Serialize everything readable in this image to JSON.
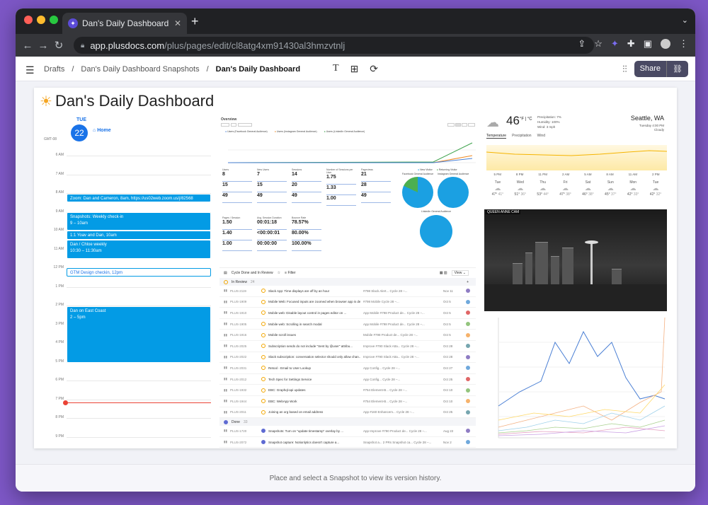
{
  "browser": {
    "tab_title": "Dan's Daily Dashboard | Plus",
    "url_domain": "app.plusdocs.com",
    "url_path": "/plus/pages/edit/cl8atg4xm91430al3hmzvtnlj"
  },
  "header": {
    "breadcrumbs": [
      "Drafts",
      "Dan's Daily Dashboard Snapshots",
      "Dan's Daily Dashboard"
    ],
    "share_label": "Share"
  },
  "page": {
    "title": "Dan's Daily Dashboard"
  },
  "calendar": {
    "day_name": "TUE",
    "day_num": "22",
    "home_label": "Home",
    "tz": "GMT-08",
    "hours": [
      "6 AM",
      "7 AM",
      "8 AM",
      "9 AM",
      "10 AM",
      "11 AM",
      "12 PM",
      "1 PM",
      "2 PM",
      "3 PM",
      "4 PM",
      "5 PM",
      "6 PM",
      "7 PM",
      "8 PM",
      "9 PM"
    ],
    "events": [
      {
        "title": "Zoom: Dan and Cameron, 8am, https://us02web.zoom.us/j/82568",
        "time": ""
      },
      {
        "title": "Snapshots: Weekly check-in",
        "time": "9 – 10am"
      },
      {
        "title": "1:1 Yoav and Dan, 10am",
        "time": ""
      },
      {
        "title": "Dan / Chloe weekly",
        "time": "10:30 – 11:30am"
      },
      {
        "title": "GTM Design checkin, 12pm",
        "time": ""
      },
      {
        "title": "Dan on East Coast",
        "time": "2 – 5pm"
      }
    ]
  },
  "overview": {
    "title": "Overview",
    "legend": [
      "Users (Facebook General Audience)",
      "Users (Instagram General Audience)",
      "Users (LinkedIn General Audience)"
    ],
    "cards": [
      {
        "label": "Users",
        "values": [
          "8",
          "15",
          "49"
        ]
      },
      {
        "label": "New Users",
        "values": [
          "7",
          "15",
          "49"
        ]
      },
      {
        "label": "Sessions",
        "values": [
          "14",
          "20",
          "49"
        ]
      },
      {
        "label": "Number of Sessions per User",
        "values": [
          "1.75",
          "1.33",
          "1.00"
        ]
      },
      {
        "label": "Pageviews",
        "values": [
          "21",
          "28",
          "49"
        ]
      },
      {
        "label": "Pages / Session",
        "values": [
          "1.50",
          "1.40",
          "1.00"
        ]
      },
      {
        "label": "Avg. Session Duration",
        "values": [
          "00:01:18",
          "<00:00:01",
          "00:00:00"
        ]
      },
      {
        "label": "Bounce Rate",
        "values": [
          "78.57%",
          "80.00%",
          "100.00%"
        ]
      }
    ],
    "pie_titles": [
      "Facebook General Audience",
      "Instagram General Audience",
      "LinkedIn General Audience"
    ],
    "pie_legend": [
      "New Visitor",
      "Returning Visitor"
    ]
  },
  "issues": {
    "view_title": "Cycle Done and In Review",
    "filter": "Filter",
    "view": "View",
    "groups": [
      {
        "name": "In Review",
        "count": "24"
      },
      {
        "name": "Done",
        "count": "33"
      }
    ],
    "rows": [
      {
        "id": "PLUS-2119",
        "title": "Slack App: Time displays are off by an hour",
        "tags": "#798  Slack Alert...  Cycle 28 –...",
        "date": "Nov 11"
      },
      {
        "id": "PLUS-1909",
        "title": "Mobile Web: Focused inputs are zoomed when browser app is de- and re-focu...",
        "tags": "#798  Mobile  Cycle 28 –...",
        "date": "Oct 5"
      },
      {
        "id": "PLUS-1910",
        "title": "Mobile web: Disable layout control in pages editor on ...",
        "tags": "App  Mobile  #798  Product de...  Cycle 28 –...",
        "date": "Oct 5"
      },
      {
        "id": "PLUS-1905",
        "title": "Mobile web: Scrolling in search modal",
        "tags": "App  Mobile  #798  Product de...  Cycle 28 –...",
        "date": "Oct 5"
      },
      {
        "id": "PLUS-1916",
        "title": "Mobile scroll issues",
        "tags": "Mobile  #798  Product de...  Cycle 28 –...",
        "date": "Oct 5"
      },
      {
        "id": "PLUS-2025",
        "title": "Subscription sends do not include \"Sent by @user\" attribu...",
        "tags": "Improve  #790  Slack Atta...  Cycle 28 –...",
        "date": "Oct 28"
      },
      {
        "id": "PLUS-2022",
        "title": "Slack subscription: conversation selector should only allow chan...",
        "tags": "Improve  #790  Slack Atta...  Cycle 28 –...",
        "date": "Oct 28"
      },
      {
        "id": "PLUS-2031",
        "title": "Retool - Email to User Lookup",
        "tags": "App Config...  Cycle 28 –...",
        "date": "Oct 27"
      },
      {
        "id": "PLUS-2012",
        "title": "Tech Spec for Settings Service",
        "tags": "App Config...  Cycle 28 –...",
        "date": "Oct 25"
      },
      {
        "id": "PLUS-1932",
        "title": "EBC: Graphql-api updates",
        "tags": "#754  Element-B...  Cycle 28 –...",
        "date": "Oct 10"
      },
      {
        "id": "PLUS-1944",
        "title": "EBC: WebApp Work",
        "tags": "#754  Element-B...  Cycle 28 –...",
        "date": "Oct 10"
      },
      {
        "id": "PLUS-2011",
        "title": "Joining an org based on email address",
        "tags": "App  #160  Enhancem...  Cycle 28 –...",
        "date": "Oct 25"
      },
      {
        "id": "PLUS-1720",
        "title": "Snapshots: Turn on \"update timestamp\" overlay by ...",
        "tags": "App  Improve  #790  Product de...  Cycle 28 –...",
        "date": "Aug 22"
      },
      {
        "id": "PLUS-2072",
        "title": "Snapshot capture: Notionlytics doesn't capture a...",
        "tags": "Snapshot a...  2 PRs  Snapshot ca...  Cycle 28 –...",
        "date": "Nov 2"
      }
    ]
  },
  "weather": {
    "temp": "46",
    "units": "°F | °C",
    "precip": "Precipitation: 7%",
    "humidity": "Humidity: 100%",
    "wind": "Wind: 3 mph",
    "location": "Seattle, WA",
    "time": "Tuesday 4:00 PM",
    "condition": "Cloudy",
    "tabs": [
      "Temperature",
      "Precipitation",
      "Wind"
    ],
    "times": [
      "5 PM",
      "8 PM",
      "11 PM",
      "2 AM",
      "5 AM",
      "8 AM",
      "11 AM",
      "2 PM"
    ],
    "days": [
      {
        "d": "Tue",
        "hi": "47°",
        "lo": "41°"
      },
      {
        "d": "Wed",
        "hi": "51°",
        "lo": "36°"
      },
      {
        "d": "Thu",
        "hi": "53°",
        "lo": "44°"
      },
      {
        "d": "Fri",
        "hi": "47°",
        "lo": "38°"
      },
      {
        "d": "Sat",
        "hi": "46°",
        "lo": "38°"
      },
      {
        "d": "Sun",
        "hi": "45°",
        "lo": "37°"
      },
      {
        "d": "Mon",
        "hi": "42°",
        "lo": "33°"
      },
      {
        "d": "Tue",
        "hi": "42°",
        "lo": "32°"
      }
    ]
  },
  "camera": {
    "label": "QUEEN ANNE CAM"
  },
  "footer": {
    "hint": "Place and select a Snapshot to view its version history."
  },
  "colors": {
    "accent": "#4a4a63",
    "calendar_event": "#039be5",
    "canvas": "#f1f2f7"
  }
}
